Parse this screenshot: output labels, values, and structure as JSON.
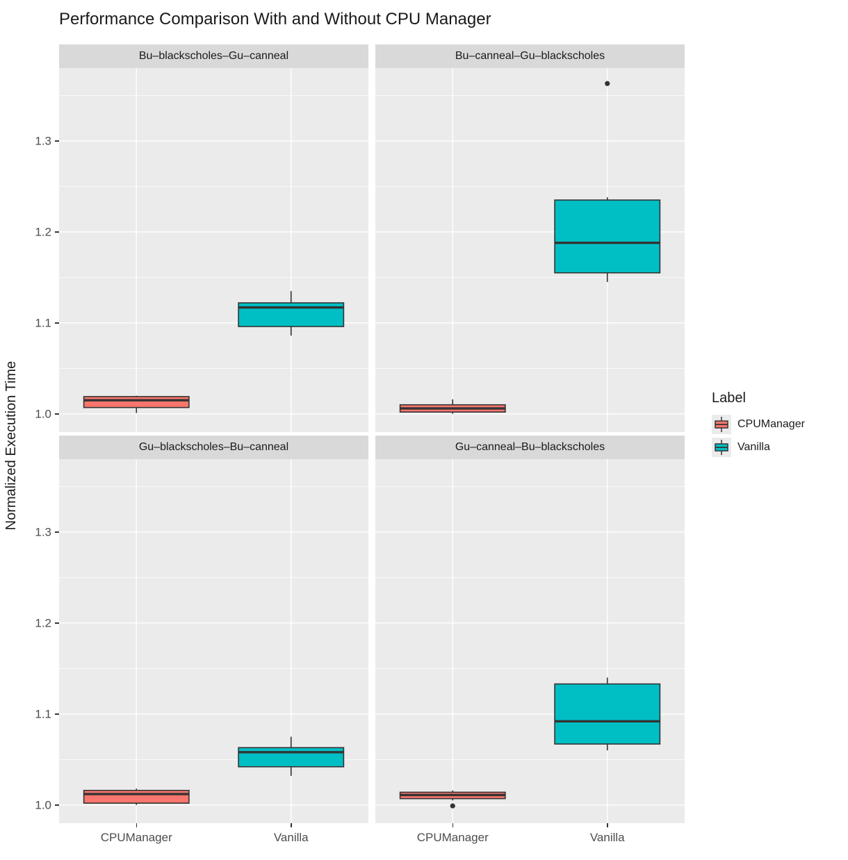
{
  "chart_data": {
    "type": "boxplot",
    "title": "Performance Comparison With and Without CPU Manager",
    "ylabel": "Normalized Execution Time",
    "ylim": [
      0.98,
      1.38
    ],
    "yticks": [
      1.0,
      1.1,
      1.2,
      1.3
    ],
    "ytick_labels": [
      "1.0",
      "1.1",
      "1.2",
      "1.3"
    ],
    "x_categories": [
      "CPUManager",
      "Vanilla"
    ],
    "grid": true,
    "panel_bg": "#EBEBEB",
    "strip_bg": "#D9D9D9",
    "box_stroke": "#333333",
    "legend": {
      "title": "Label",
      "position": "right",
      "entries": [
        {
          "label": "CPUManager",
          "color": "#F8766D"
        },
        {
          "label": "Vanilla",
          "color": "#00BFC4"
        }
      ]
    },
    "facets": [
      {
        "title": "Bu–blackscholes–Gu–canneal",
        "boxes": [
          {
            "group": "CPUManager",
            "color": "#F8766D",
            "min": 1.001,
            "q1": 1.007,
            "median": 1.015,
            "q3": 1.019,
            "max": 1.02,
            "outliers": []
          },
          {
            "group": "Vanilla",
            "color": "#00BFC4",
            "min": 1.086,
            "q1": 1.096,
            "median": 1.117,
            "q3": 1.122,
            "max": 1.135,
            "outliers": []
          }
        ]
      },
      {
        "title": "Bu–canneal–Gu–blackscholes",
        "boxes": [
          {
            "group": "CPUManager",
            "color": "#F8766D",
            "min": 1.0,
            "q1": 1.002,
            "median": 1.006,
            "q3": 1.01,
            "max": 1.016,
            "outliers": []
          },
          {
            "group": "Vanilla",
            "color": "#00BFC4",
            "min": 1.145,
            "q1": 1.155,
            "median": 1.188,
            "q3": 1.235,
            "max": 1.238,
            "outliers": [
              1.363
            ]
          }
        ]
      },
      {
        "title": "Gu–blackscholes–Bu–canneal",
        "boxes": [
          {
            "group": "CPUManager",
            "color": "#F8766D",
            "min": 1.0,
            "q1": 1.002,
            "median": 1.012,
            "q3": 1.016,
            "max": 1.018,
            "outliers": []
          },
          {
            "group": "Vanilla",
            "color": "#00BFC4",
            "min": 1.032,
            "q1": 1.042,
            "median": 1.058,
            "q3": 1.063,
            "max": 1.075,
            "outliers": []
          }
        ]
      },
      {
        "title": "Gu–canneal–Bu–blackscholes",
        "boxes": [
          {
            "group": "CPUManager",
            "color": "#F8766D",
            "min": 1.005,
            "q1": 1.007,
            "median": 1.011,
            "q3": 1.014,
            "max": 1.016,
            "outliers": [
              0.999
            ]
          },
          {
            "group": "Vanilla",
            "color": "#00BFC4",
            "min": 1.06,
            "q1": 1.067,
            "median": 1.092,
            "q3": 1.133,
            "max": 1.14,
            "outliers": []
          }
        ]
      }
    ]
  }
}
